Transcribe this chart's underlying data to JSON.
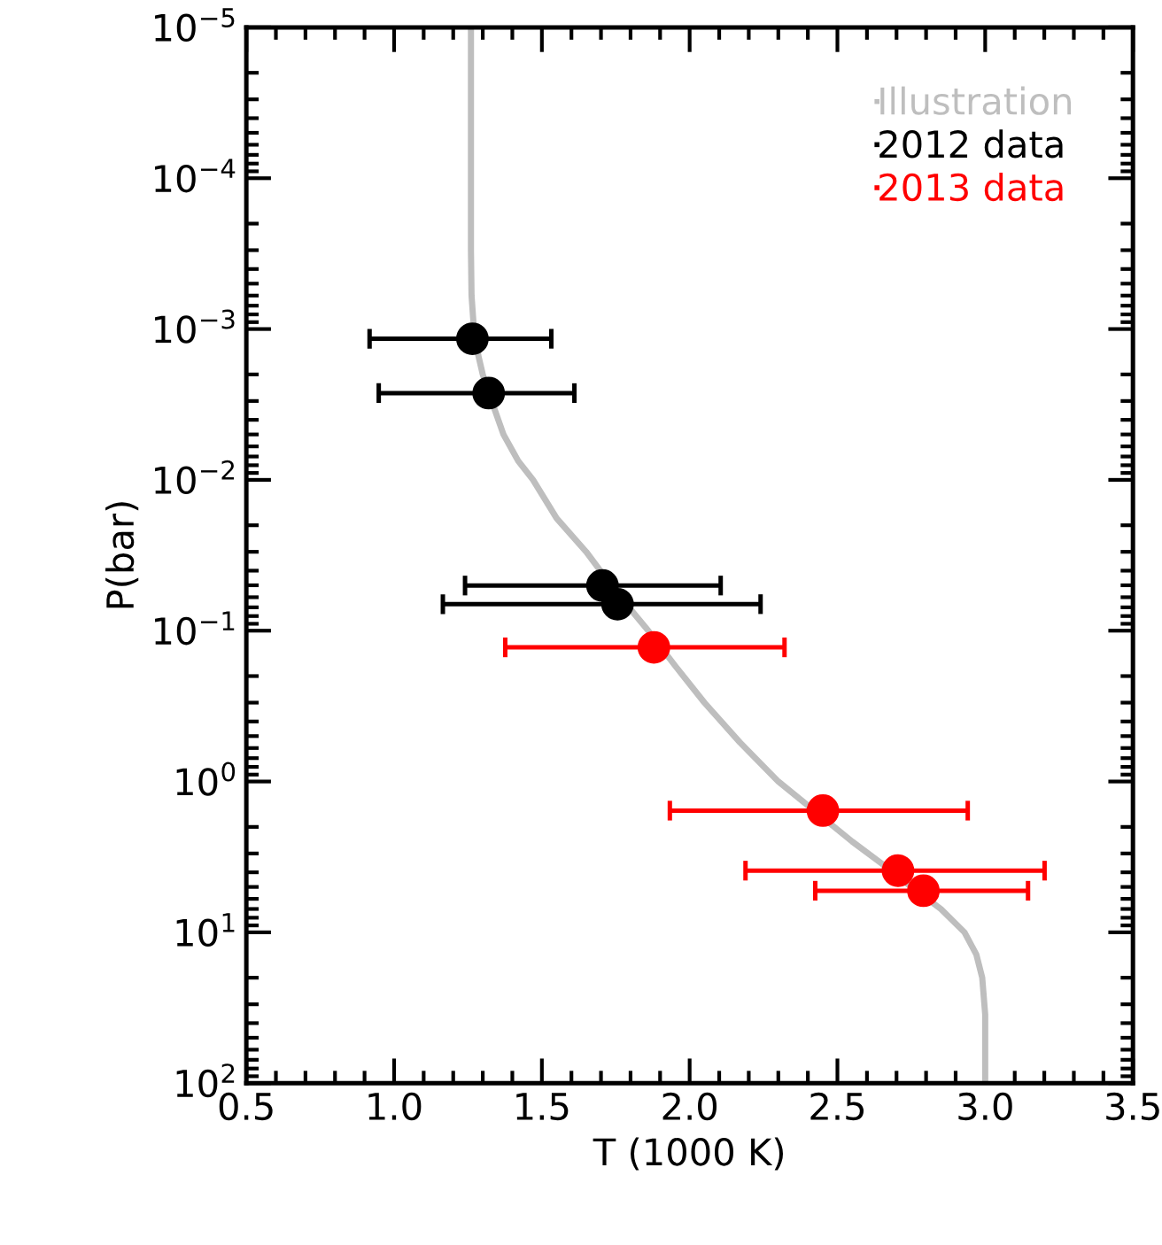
{
  "chart_data": {
    "type": "scatter",
    "xlabel": "T (1000 K)",
    "ylabel": "P(bar)",
    "log": "y",
    "legend": "top right",
    "marker": "circle",
    "xlim": [
      0.5,
      3.5
    ],
    "xticks": [
      0.5,
      {
        "value": 1,
        "label": "1.0"
      },
      1.5,
      {
        "value": 2,
        "label": "2.0"
      },
      2.5,
      {
        "value": 3,
        "label": "3.0"
      },
      3.5
    ],
    "ylim": [
      100,
      1e-05
    ],
    "yticks": [
      {
        "value": 1e-05,
        "label": "10$^{−5}$"
      },
      {
        "value": 0.0001,
        "label": "10$^{−4}$"
      },
      {
        "value": 0.001,
        "label": "10$^{−3}$"
      },
      {
        "value": 0.01,
        "label": "10$^{−2}$"
      },
      {
        "value": 0.1,
        "label": "10$^{−1}$"
      },
      {
        "value": 1,
        "label": "10$^{0}$"
      },
      {
        "value": 10,
        "label": "10$^{1}$"
      },
      {
        "value": 100,
        "label": "10$^{2}$"
      }
    ],
    "series": [
      {
        "name": "Illustration",
        "type": "line",
        "line_style": "solid",
        "marker": "none",
        "color": "#bebebe",
        "x": [
          1.26,
          1.26,
          1.262,
          1.27,
          1.285,
          1.3,
          1.33,
          1.37,
          1.42,
          1.47,
          1.55,
          1.65,
          1.75,
          1.86,
          1.95,
          2.05,
          2.17,
          2.3,
          2.55,
          2.65,
          2.75,
          2.85,
          2.93,
          2.97,
          2.99,
          3.0,
          3.0
        ],
        "values": [
          1e-05,
          0.0003,
          0.0006,
          0.001,
          0.0015,
          0.002,
          0.003,
          0.005,
          0.0075,
          0.01,
          0.018,
          0.03,
          0.055,
          0.1,
          0.17,
          0.3,
          0.55,
          1,
          2.5,
          3.5,
          5,
          7,
          10,
          14,
          20,
          35,
          100
        ]
      },
      {
        "name": "2012 data",
        "color": "#000000",
        "x": [
          1.265,
          1.32,
          1.705,
          1.756
        ],
        "values": [
          0.00116,
          0.00266,
          0.0502,
          0.0667
        ],
        "xerrors": [
          [
            0.917,
            1.532
          ],
          [
            0.948,
            1.61
          ],
          [
            1.24,
            2.105
          ],
          [
            1.165,
            2.24
          ]
        ]
      },
      {
        "name": "2013 data",
        "color": "#ff0000",
        "x": [
          1.879,
          2.451,
          2.705,
          2.791
        ],
        "values": [
          0.129,
          1.56,
          3.9,
          5.3
        ],
        "xerrors": [
          [
            1.376,
            2.321
          ],
          [
            1.933,
            2.941
          ],
          [
            2.189,
            3.201
          ],
          [
            2.425,
            3.145
          ]
        ]
      }
    ]
  }
}
